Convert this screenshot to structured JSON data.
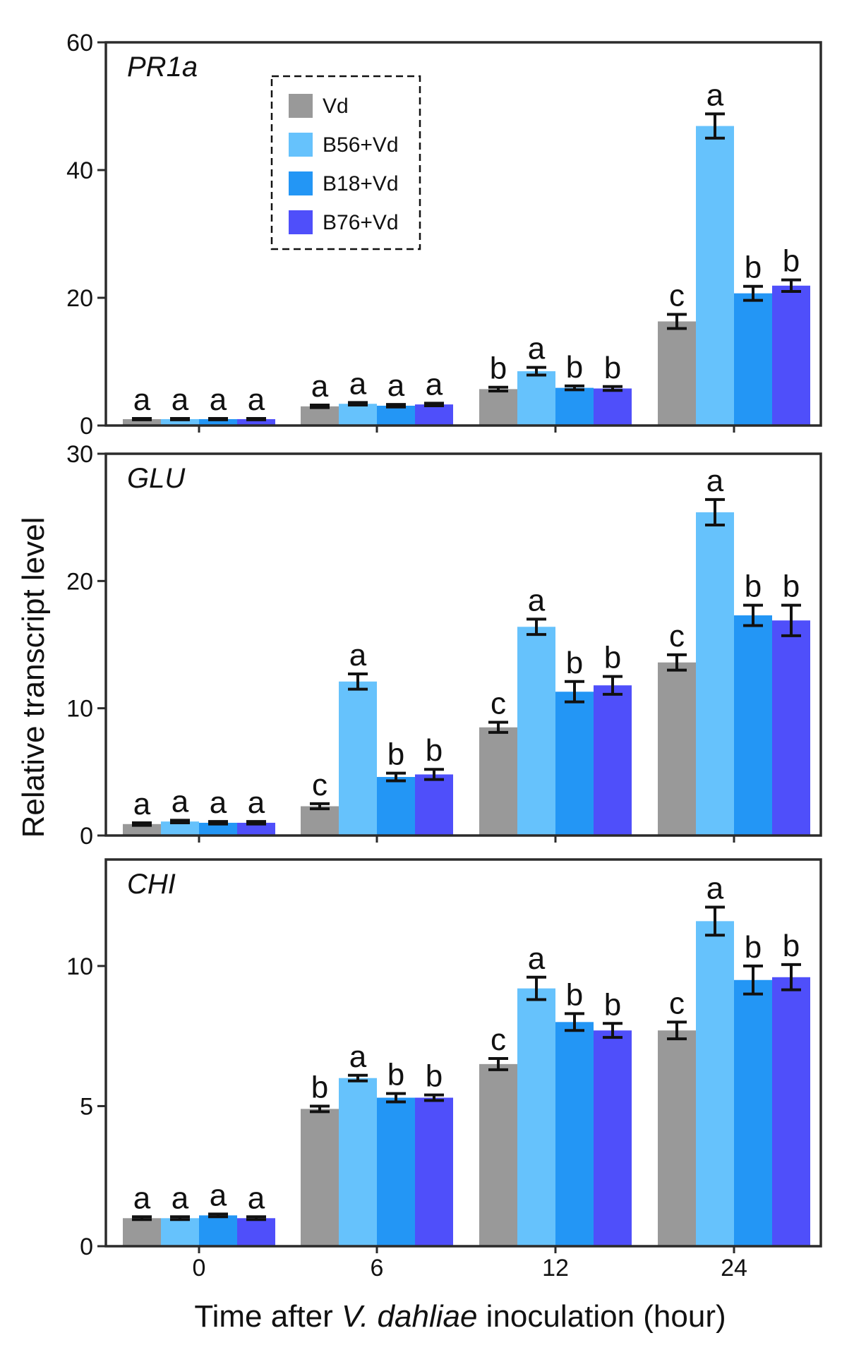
{
  "chart_data": {
    "type": "bar",
    "ylabel": "Relative transcript level",
    "xlabel": {
      "prefix": "Time after ",
      "species": "V. dahliae",
      "suffix": " inoculation (hour)"
    },
    "categories": [
      "0",
      "6",
      "12",
      "24"
    ],
    "legend": {
      "placement": "top-left",
      "entries": [
        "Vd",
        "B56+Vd",
        "B18+Vd",
        "B76+Vd"
      ]
    },
    "colors": [
      "#999999",
      "#66c2fc",
      "#2396f5",
      "#4f4ffa"
    ],
    "panels": [
      {
        "title": "PR1a",
        "ylim": [
          0,
          60
        ],
        "yticks": [
          0,
          20,
          40,
          60
        ],
        "series": [
          {
            "name": "Vd",
            "values": [
              1.0,
              3.0,
              5.7,
              16.3
            ],
            "errors": [
              0.1,
              0.2,
              0.3,
              1.1
            ],
            "letters": [
              "a",
              "a",
              "b",
              "c"
            ]
          },
          {
            "name": "B56+Vd",
            "values": [
              1.0,
              3.4,
              8.5,
              46.9
            ],
            "errors": [
              0.1,
              0.2,
              0.6,
              1.9
            ],
            "letters": [
              "a",
              "a",
              "a",
              "a"
            ]
          },
          {
            "name": "B18+Vd",
            "values": [
              1.0,
              3.1,
              5.9,
              20.7
            ],
            "errors": [
              0.1,
              0.2,
              0.3,
              1.1
            ],
            "letters": [
              "a",
              "a",
              "b",
              "b"
            ]
          },
          {
            "name": "B76+Vd",
            "values": [
              1.0,
              3.3,
              5.8,
              21.9
            ],
            "errors": [
              0.1,
              0.2,
              0.3,
              0.9
            ],
            "letters": [
              "a",
              "a",
              "b",
              "b"
            ]
          }
        ]
      },
      {
        "title": "GLU",
        "ylim": [
          0,
          30
        ],
        "yticks": [
          0,
          10,
          20,
          30
        ],
        "series": [
          {
            "name": "Vd",
            "values": [
              0.9,
              2.3,
              8.5,
              13.6
            ],
            "errors": [
              0.1,
              0.2,
              0.4,
              0.6
            ],
            "letters": [
              "a",
              "c",
              "c",
              "c"
            ]
          },
          {
            "name": "B56+Vd",
            "values": [
              1.1,
              12.1,
              16.4,
              25.4
            ],
            "errors": [
              0.1,
              0.6,
              0.6,
              1.0
            ],
            "letters": [
              "a",
              "a",
              "a",
              "a"
            ]
          },
          {
            "name": "B18+Vd",
            "values": [
              1.0,
              4.6,
              11.3,
              17.3
            ],
            "errors": [
              0.1,
              0.3,
              0.8,
              0.8
            ],
            "letters": [
              "a",
              "b",
              "b",
              "b"
            ]
          },
          {
            "name": "B76+Vd",
            "values": [
              1.0,
              4.8,
              11.8,
              16.9
            ],
            "errors": [
              0.1,
              0.4,
              0.7,
              1.2
            ],
            "letters": [
              "a",
              "b",
              "b",
              "b"
            ]
          }
        ]
      },
      {
        "title": "CHI",
        "ylim": [
          0,
          13.8
        ],
        "yticks": [
          0,
          5,
          10
        ],
        "series": [
          {
            "name": "Vd",
            "values": [
              1.0,
              4.9,
              6.5,
              7.7
            ],
            "errors": [
              0.05,
              0.1,
              0.2,
              0.3
            ],
            "letters": [
              "a",
              "b",
              "c",
              "c"
            ]
          },
          {
            "name": "B56+Vd",
            "values": [
              1.0,
              6.0,
              9.2,
              11.6
            ],
            "errors": [
              0.05,
              0.1,
              0.4,
              0.5
            ],
            "letters": [
              "a",
              "a",
              "a",
              "a"
            ]
          },
          {
            "name": "B18+Vd",
            "values": [
              1.1,
              5.3,
              8.0,
              9.5
            ],
            "errors": [
              0.05,
              0.15,
              0.3,
              0.5
            ],
            "letters": [
              "a",
              "b",
              "b",
              "b"
            ]
          },
          {
            "name": "B76+Vd",
            "values": [
              1.0,
              5.3,
              7.7,
              9.6
            ],
            "errors": [
              0.05,
              0.1,
              0.25,
              0.45
            ],
            "letters": [
              "a",
              "b",
              "b",
              "b"
            ]
          }
        ]
      }
    ]
  }
}
